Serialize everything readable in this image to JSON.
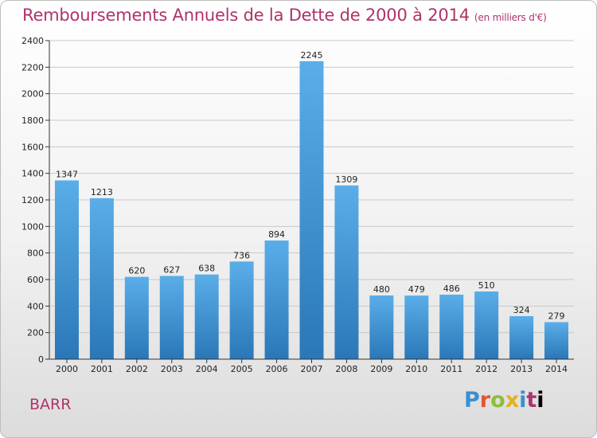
{
  "header": {
    "title": "Remboursements Annuels de la Dette de 2000 à 2014",
    "subtitle": "(en milliers d'€)"
  },
  "footer": {
    "town": "BARR",
    "logo_letters": [
      "P",
      "r",
      "o",
      "x",
      "i",
      "t",
      "i"
    ]
  },
  "chart_data": {
    "type": "bar",
    "title": "Remboursements Annuels de la Dette de 2000 à 2014",
    "subtitle": "(en milliers d'€)",
    "categories": [
      "2000",
      "2001",
      "2002",
      "2003",
      "2004",
      "2005",
      "2006",
      "2007",
      "2008",
      "2009",
      "2010",
      "2011",
      "2012",
      "2013",
      "2014"
    ],
    "values": [
      1347,
      1213,
      620,
      627,
      638,
      736,
      894,
      2245,
      1309,
      480,
      479,
      486,
      510,
      324,
      279
    ],
    "ylim": [
      0,
      2400
    ],
    "yticks": [
      0,
      200,
      400,
      600,
      800,
      1000,
      1200,
      1400,
      1600,
      1800,
      2000,
      2200,
      2400
    ],
    "grid": true,
    "bar_color_top": "#5aaee8",
    "bar_color_bottom": "#2a77b8"
  }
}
